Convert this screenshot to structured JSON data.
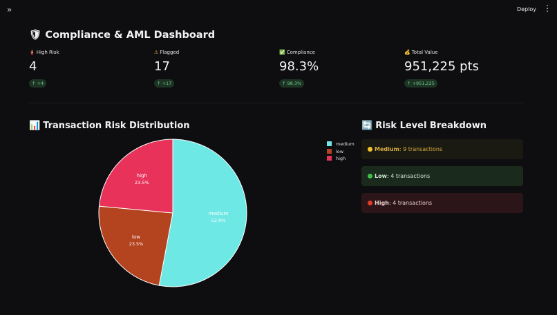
{
  "header": {
    "expand_icon": "»",
    "deploy_label": "Deploy",
    "menu_icon": "⋮"
  },
  "page": {
    "title_icon": "🛡",
    "title": "Compliance & AML Dashboard"
  },
  "metrics": [
    {
      "icon": "🧯",
      "label": "High Risk",
      "value": "4",
      "delta": "↑ +4"
    },
    {
      "icon": "⚠",
      "label": "Flagged",
      "value": "17",
      "delta": "↑ +17"
    },
    {
      "icon": "✅",
      "label": "Compliance",
      "value": "98.3%",
      "delta": "↑ 98.3%"
    },
    {
      "icon": "💰",
      "label": "Total Value",
      "value": "951,225 pts",
      "delta": "↑ +951,225"
    }
  ],
  "sections": {
    "pie": {
      "icon": "📊",
      "title": "Transaction Risk Distribution"
    },
    "breakdown": {
      "icon": "🔄",
      "title": "Risk Level Breakdown"
    }
  },
  "chart_data": {
    "type": "pie",
    "categories": [
      "medium",
      "low",
      "high"
    ],
    "values": [
      52.9,
      23.5,
      23.5
    ],
    "labels": [
      "52.9%",
      "23.5%",
      "23.5%"
    ],
    "colors": [
      "#6ee8e4",
      "#b3441f",
      "#e8325a"
    ],
    "legend": "top-right"
  },
  "breakdown": [
    {
      "name": "Medium",
      "text": ": 9 transactions",
      "dot": "#f2c12e",
      "text_color": "#d7ae3f",
      "bg": "#1b1a12"
    },
    {
      "name": "Low",
      "text": ": 4 transactions",
      "dot": "#3fbf4a",
      "text_color": "#cfe8cf",
      "bg": "#1a2a1d"
    },
    {
      "name": "High",
      "text": ": 4 transactions",
      "dot": "#e23a28",
      "text_color": "#f0d0d0",
      "bg": "#2c1518"
    }
  ]
}
